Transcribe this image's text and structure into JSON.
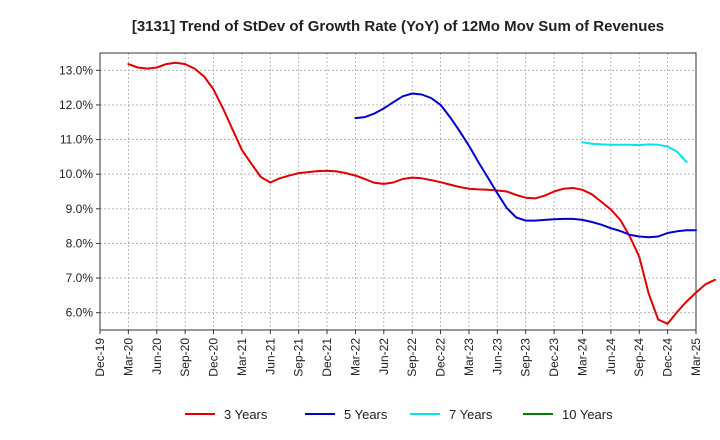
{
  "chart_data": {
    "type": "line",
    "title": "[3131]  Trend of StDev of Growth Rate (YoY) of 12Mo Mov Sum of Revenues",
    "xlabel": "",
    "ylabel": "",
    "ylim": [
      5.5,
      13.5
    ],
    "y_ticks": [
      6.0,
      7.0,
      8.0,
      9.0,
      10.0,
      11.0,
      12.0,
      13.0
    ],
    "y_tick_labels": [
      "6.0%",
      "7.0%",
      "8.0%",
      "9.0%",
      "10.0%",
      "11.0%",
      "12.0%",
      "13.0%"
    ],
    "x_tick_labels": [
      "Dec-19",
      "Mar-20",
      "Jun-20",
      "Sep-20",
      "Dec-20",
      "Mar-21",
      "Jun-21",
      "Sep-21",
      "Dec-21",
      "Mar-22",
      "Jun-22",
      "Sep-22",
      "Dec-22",
      "Mar-23",
      "Jun-23",
      "Sep-23",
      "Dec-23",
      "Mar-24",
      "Jun-24",
      "Sep-24",
      "Dec-24",
      "Mar-25"
    ],
    "x_start_month_index": 0,
    "grid": true,
    "legend_position": "bottom",
    "series": [
      {
        "name": "3 Years",
        "color": "#e00000",
        "start_index": 3,
        "values": [
          13.18,
          13.08,
          13.05,
          13.08,
          13.18,
          13.22,
          13.18,
          13.05,
          12.82,
          12.45,
          11.9,
          11.3,
          10.7,
          10.3,
          9.92,
          9.76,
          9.88,
          9.96,
          10.03,
          10.06,
          10.09,
          10.1,
          10.08,
          10.03,
          9.96,
          9.86,
          9.75,
          9.72,
          9.76,
          9.86,
          9.9,
          9.88,
          9.83,
          9.77,
          9.7,
          9.63,
          9.58,
          9.56,
          9.55,
          9.53,
          9.5,
          9.4,
          9.32,
          9.3,
          9.38,
          9.5,
          9.58,
          9.6,
          9.55,
          9.42,
          9.2,
          8.98,
          8.68,
          8.2,
          7.62,
          6.55,
          5.8,
          5.68,
          6.02,
          6.32,
          6.58,
          6.82,
          6.95
        ]
      },
      {
        "name": "5 Years",
        "color": "#0000cc",
        "start_index": 27,
        "values": [
          11.62,
          11.65,
          11.75,
          11.9,
          12.08,
          12.25,
          12.33,
          12.3,
          12.2,
          12.0,
          11.65,
          11.25,
          10.82,
          10.35,
          9.9,
          9.45,
          9.02,
          8.75,
          8.66,
          8.66,
          8.68,
          8.7,
          8.71,
          8.71,
          8.68,
          8.62,
          8.54,
          8.44,
          8.36,
          8.25,
          8.2,
          8.18,
          8.2,
          8.3,
          8.35,
          8.38,
          8.38
        ]
      },
      {
        "name": "7 Years",
        "color": "#00e5ee",
        "start_index": 51,
        "values": [
          10.92,
          10.88,
          10.86,
          10.85,
          10.85,
          10.85,
          10.84,
          10.86,
          10.85,
          10.8,
          10.65,
          10.35
        ]
      },
      {
        "name": "10 Years",
        "color": "#008000",
        "start_index": 0,
        "values": []
      }
    ]
  }
}
